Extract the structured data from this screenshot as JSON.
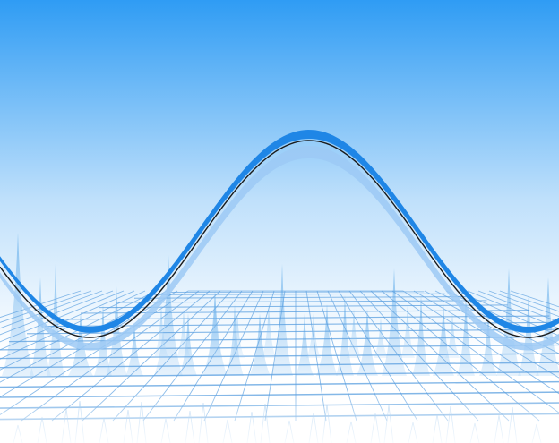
{
  "colors": {
    "sky_top": "#2f9cf4",
    "sky_mid": "#bfe0fb",
    "sky_bottom": "#ffffff",
    "wave_dark": "#1f86e6",
    "wave_light": "#9cc9f5",
    "wave_line": "#1b1b1b",
    "peaks": "#6fb4ec",
    "grid": "#5a9fe0"
  }
}
